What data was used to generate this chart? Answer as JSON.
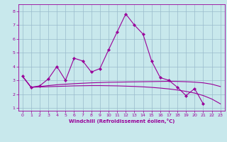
{
  "xlabel": "Windchill (Refroidissement éolien,°C)",
  "bg_color": "#c8e8ec",
  "line_color": "#990099",
  "grid_color": "#99bbcc",
  "xlim": [
    -0.5,
    23.5
  ],
  "ylim": [
    0.8,
    8.5
  ],
  "xticks": [
    0,
    1,
    2,
    3,
    4,
    5,
    6,
    7,
    8,
    9,
    10,
    11,
    12,
    13,
    14,
    15,
    16,
    17,
    18,
    19,
    20,
    21,
    22,
    23
  ],
  "yticks": [
    1,
    2,
    3,
    4,
    5,
    6,
    7,
    8
  ],
  "series_main": {
    "x": [
      0,
      1,
      2,
      3,
      4,
      5,
      6,
      7,
      8,
      9,
      10,
      11,
      12,
      13,
      14,
      15,
      16,
      17,
      18,
      19,
      20,
      21,
      22,
      23
    ],
    "y": [
      3.3,
      2.5,
      2.6,
      3.1,
      4.0,
      3.0,
      4.6,
      4.4,
      3.6,
      3.85,
      5.2,
      6.5,
      7.8,
      7.0,
      6.35,
      4.4,
      3.2,
      3.0,
      2.5,
      1.9,
      2.4,
      1.3,
      null,
      null
    ]
  },
  "series_trend1": {
    "x": [
      0,
      1,
      2,
      3,
      4,
      5,
      6,
      7,
      8,
      9,
      10,
      11,
      12,
      13,
      14,
      15,
      16,
      17,
      18,
      19,
      20,
      21,
      22,
      23
    ],
    "y": [
      3.3,
      2.5,
      2.55,
      2.62,
      2.68,
      2.72,
      2.76,
      2.79,
      2.82,
      2.84,
      2.86,
      2.87,
      2.88,
      2.89,
      2.9,
      2.91,
      2.92,
      2.93,
      2.92,
      2.9,
      2.87,
      2.82,
      2.72,
      2.55
    ]
  },
  "series_trend2": {
    "x": [
      0,
      1,
      2,
      3,
      4,
      5,
      6,
      7,
      8,
      9,
      10,
      11,
      12,
      13,
      14,
      15,
      16,
      17,
      18,
      19,
      20,
      21,
      22,
      23
    ],
    "y": [
      3.3,
      2.5,
      2.52,
      2.54,
      2.56,
      2.58,
      2.6,
      2.61,
      2.62,
      2.62,
      2.61,
      2.6,
      2.58,
      2.56,
      2.53,
      2.49,
      2.44,
      2.38,
      2.3,
      2.2,
      2.08,
      1.9,
      1.65,
      1.3
    ]
  }
}
